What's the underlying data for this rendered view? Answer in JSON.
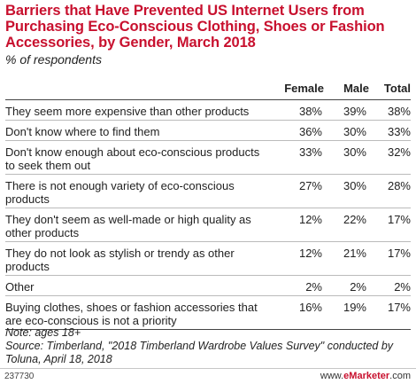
{
  "chart_data": {
    "type": "table",
    "title": "Barriers that Have Prevented US Internet Users from Purchasing Eco-Conscious Clothing, Shoes or Fashion Accessories, by Gender, March 2018",
    "subtitle": "% of respondents",
    "columns": [
      "Female",
      "Male",
      "Total"
    ],
    "rows": [
      {
        "label": "They seem more expensive than other products",
        "values": [
          "38%",
          "39%",
          "38%"
        ]
      },
      {
        "label": "Don't know where to find them",
        "values": [
          "36%",
          "30%",
          "33%"
        ]
      },
      {
        "label": "Don't know enough about eco-conscious products to seek them out",
        "values": [
          "33%",
          "30%",
          "32%"
        ]
      },
      {
        "label": "There is not enough variety of eco-conscious products",
        "values": [
          "27%",
          "30%",
          "28%"
        ]
      },
      {
        "label": "They don't seem as well-made or high quality as other products",
        "values": [
          "12%",
          "22%",
          "17%"
        ]
      },
      {
        "label": "They do not look as stylish or trendy as other products",
        "values": [
          "12%",
          "21%",
          "17%"
        ]
      },
      {
        "label": "Other",
        "values": [
          "2%",
          "2%",
          "2%"
        ]
      },
      {
        "label": "Buying clothes, shoes or fashion accessories that are eco-conscious is not a priority",
        "values": [
          "16%",
          "19%",
          "17%"
        ]
      }
    ]
  },
  "notes": {
    "note": "Note: ages 18+",
    "source": "Source: Timberland, \"2018 Timberland Wardrobe Values Survey\" conducted by Toluna, April 18, 2018"
  },
  "footer": {
    "code": "237730",
    "brand_prefix": "www.",
    "brand_name": "eMarketer",
    "brand_suffix": ".com"
  },
  "colors": {
    "title": "#c8102e",
    "brand": "#c8102e"
  }
}
